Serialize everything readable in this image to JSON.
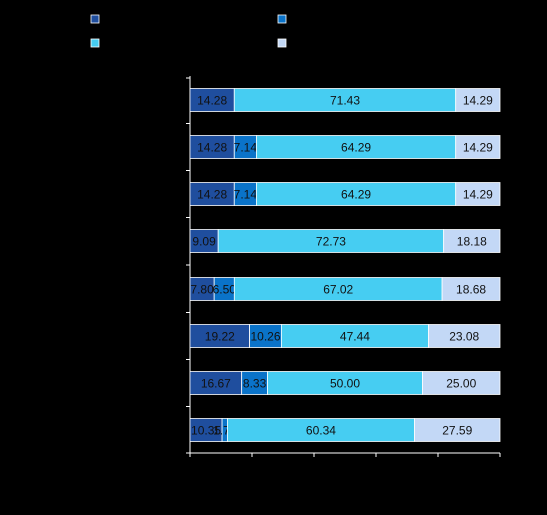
{
  "chart_data": {
    "type": "bar",
    "orientation": "horizontal",
    "stacked": true,
    "xlim": [
      0,
      100
    ],
    "grid": false,
    "legend": {
      "placement": "top",
      "entries": [
        {
          "color": "#1f4e9e"
        },
        {
          "color": "#0a73c9"
        },
        {
          "color": "#46cdf2"
        },
        {
          "color": "#c3d8f6"
        }
      ]
    },
    "categories": [
      "",
      "",
      "",
      "",
      "",
      "",
      "",
      ""
    ],
    "series": [
      {
        "color": "#1f4e9e",
        "values": [
          14.28,
          14.28,
          14.28,
          9.09,
          7.8,
          19.22,
          16.67,
          10.35
        ]
      },
      {
        "color": "#0a73c9",
        "values": [
          0,
          7.14,
          7.14,
          0,
          6.5,
          10.26,
          8.33,
          1.72
        ]
      },
      {
        "color": "#46cdf2",
        "values": [
          71.43,
          64.29,
          64.29,
          72.73,
          67.02,
          47.44,
          50.0,
          60.34
        ]
      },
      {
        "color": "#c3d8f6",
        "values": [
          14.29,
          14.29,
          14.29,
          18.18,
          18.68,
          23.08,
          25.0,
          27.59
        ]
      }
    ],
    "labels": [
      [
        "14.28",
        "",
        "71.43",
        "14.29"
      ],
      [
        "14.28",
        "7.14",
        "64.29",
        "14.29"
      ],
      [
        "14.28",
        "7.14",
        "64.29",
        "14.29"
      ],
      [
        "9.09",
        "",
        "72.73",
        "18.18"
      ],
      [
        "7.80",
        "6.50",
        "67.02",
        "18.68"
      ],
      [
        "19.22",
        "10.26",
        "47.44",
        "23.08"
      ],
      [
        "16.67",
        "8.33",
        "50.00",
        "25.00"
      ],
      [
        "10.35",
        "1.72",
        "60.34",
        "27.59"
      ]
    ]
  }
}
